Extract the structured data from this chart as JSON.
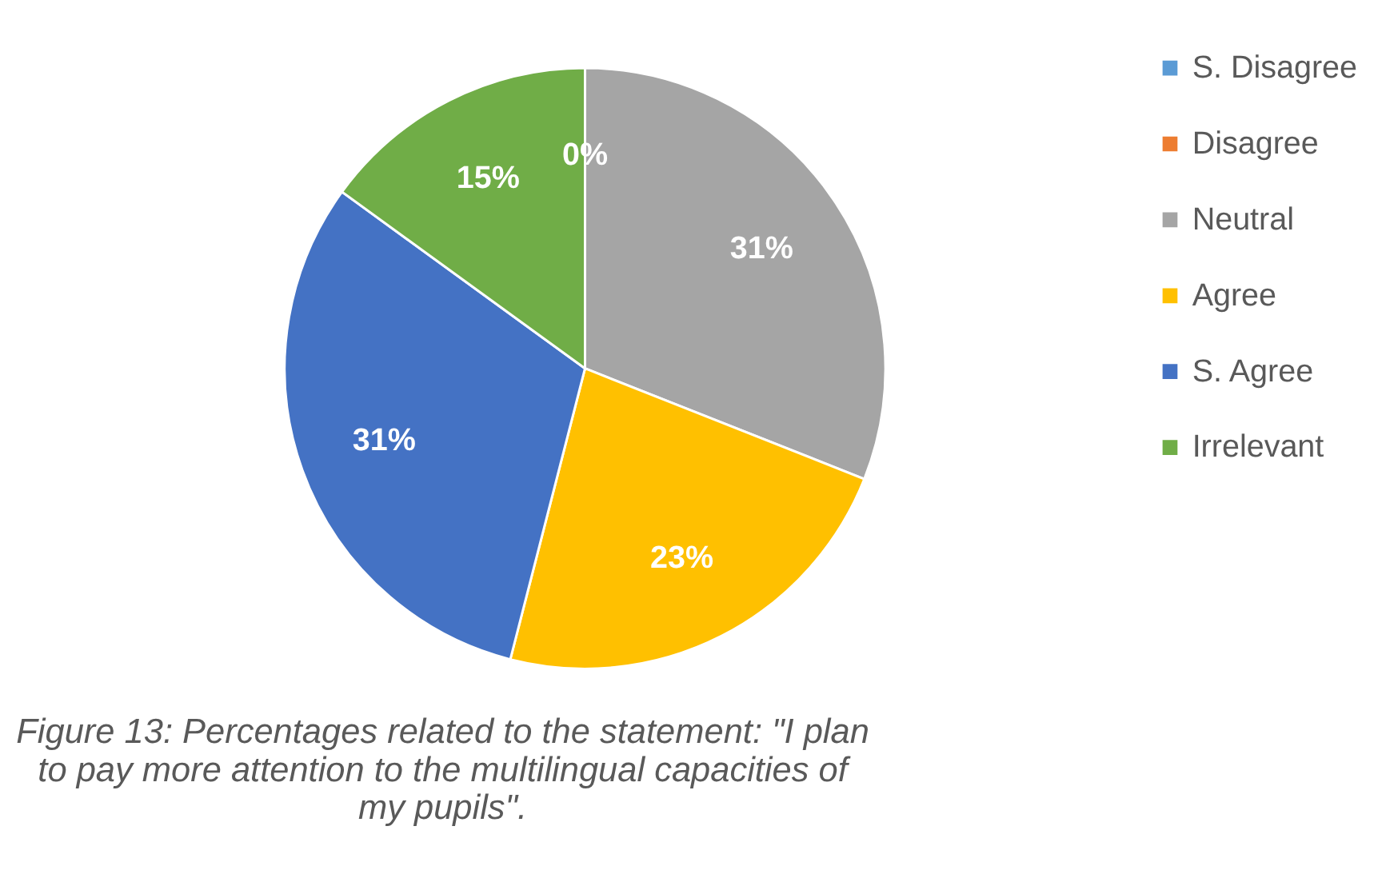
{
  "chart_data": {
    "type": "pie",
    "categories": [
      "S. Disagree",
      "Disagree",
      "Neutral",
      "Agree",
      "S. Agree",
      "Irrelevant"
    ],
    "values": [
      0,
      0,
      31,
      23,
      31,
      15
    ],
    "colors": [
      "#5b9bd5",
      "#ed7d31",
      "#a5a5a5",
      "#ffc000",
      "#4472c4",
      "#70ad47"
    ],
    "value_labels": [
      "0%",
      null,
      "31%",
      "23%",
      "31%",
      "15%"
    ],
    "legend": "right",
    "annotations": [
      "Figure 13: Percentages related to the statement: \"I plan to pay more attention to the multilingual capacities of my pupils\"."
    ]
  }
}
